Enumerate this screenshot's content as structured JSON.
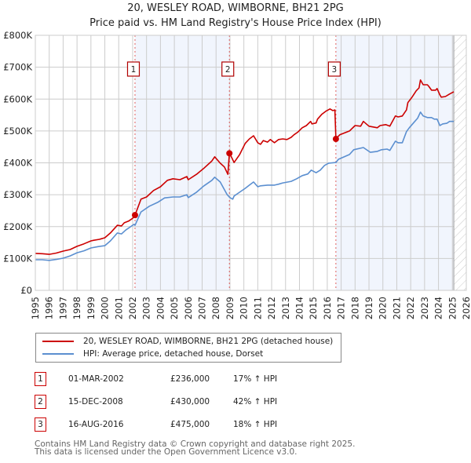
{
  "title_line1": "20, WESLEY ROAD, WIMBORNE, BH21 2PG",
  "title_line2": "Price paid vs. HM Land Registry's House Price Index (HPI)",
  "chart_data": {
    "type": "line",
    "title": "20, WESLEY ROAD, WIMBORNE, BH21 2PG — Price paid vs. HM Land Registry's House Price Index (HPI)",
    "xlabel": "",
    "ylabel": "",
    "xlim": [
      1995,
      2026
    ],
    "ylim": [
      0,
      800000
    ],
    "grid": true,
    "x_ticks": [
      "1995",
      "1996",
      "1997",
      "1998",
      "1999",
      "2000",
      "2001",
      "2002",
      "2003",
      "2004",
      "2005",
      "2006",
      "2007",
      "2008",
      "2009",
      "2010",
      "2011",
      "2012",
      "2013",
      "2014",
      "2015",
      "2016",
      "2017",
      "2018",
      "2019",
      "2020",
      "2021",
      "2022",
      "2023",
      "2024",
      "2025",
      "2026"
    ],
    "y_ticks": [
      {
        "value": 0,
        "label": "£0"
      },
      {
        "value": 100000,
        "label": "£100K"
      },
      {
        "value": 200000,
        "label": "£200K"
      },
      {
        "value": 300000,
        "label": "£300K"
      },
      {
        "value": 400000,
        "label": "£400K"
      },
      {
        "value": 500000,
        "label": "£500K"
      },
      {
        "value": 600000,
        "label": "£600K"
      },
      {
        "value": 700000,
        "label": "£700K"
      },
      {
        "value": 800000,
        "label": "£800K"
      }
    ],
    "legend_position": "below",
    "series": [
      {
        "name": "20, WESLEY ROAD, WIMBORNE, BH21 2PG (detached house)",
        "color": "#cc0000",
        "points": [
          [
            1995.0,
            116000
          ],
          [
            1995.5,
            115000
          ],
          [
            1996.0,
            113000
          ],
          [
            1996.5,
            117000
          ],
          [
            1997.0,
            123000
          ],
          [
            1997.5,
            128000
          ],
          [
            1998.0,
            138000
          ],
          [
            1998.5,
            146000
          ],
          [
            1999.0,
            155000
          ],
          [
            1999.2,
            157000
          ],
          [
            1999.6,
            160000
          ],
          [
            2000.0,
            165000
          ],
          [
            2000.4,
            180000
          ],
          [
            2000.9,
            204000
          ],
          [
            2001.2,
            202000
          ],
          [
            2001.4,
            212000
          ],
          [
            2001.7,
            217000
          ],
          [
            2002.0,
            226000
          ],
          [
            2002.17,
            236000
          ],
          [
            2002.6,
            286000
          ],
          [
            2003.0,
            293000
          ],
          [
            2003.5,
            313000
          ],
          [
            2004.0,
            325000
          ],
          [
            2004.5,
            345000
          ],
          [
            2004.9,
            350000
          ],
          [
            2005.4,
            347000
          ],
          [
            2005.9,
            357000
          ],
          [
            2006.0,
            347000
          ],
          [
            2006.6,
            364000
          ],
          [
            2007.1,
            382000
          ],
          [
            2007.7,
            406000
          ],
          [
            2007.9,
            419000
          ],
          [
            2008.3,
            399000
          ],
          [
            2008.6,
            387000
          ],
          [
            2008.85,
            364000
          ],
          [
            2008.96,
            430000
          ],
          [
            2009.1,
            419000
          ],
          [
            2009.3,
            401000
          ],
          [
            2009.7,
            426000
          ],
          [
            2010.1,
            461000
          ],
          [
            2010.4,
            475000
          ],
          [
            2010.7,
            485000
          ],
          [
            2011.0,
            463000
          ],
          [
            2011.2,
            458000
          ],
          [
            2011.4,
            470000
          ],
          [
            2011.7,
            465000
          ],
          [
            2011.9,
            473000
          ],
          [
            2012.2,
            463000
          ],
          [
            2012.5,
            473000
          ],
          [
            2012.8,
            475000
          ],
          [
            2013.1,
            473000
          ],
          [
            2013.4,
            480000
          ],
          [
            2013.6,
            488000
          ],
          [
            2013.9,
            497000
          ],
          [
            2014.2,
            510000
          ],
          [
            2014.5,
            517000
          ],
          [
            2014.8,
            530000
          ],
          [
            2014.9,
            522000
          ],
          [
            2015.2,
            525000
          ],
          [
            2015.3,
            537000
          ],
          [
            2015.6,
            552000
          ],
          [
            2015.9,
            562000
          ],
          [
            2016.2,
            569000
          ],
          [
            2016.4,
            564000
          ],
          [
            2016.55,
            566000
          ],
          [
            2016.62,
            475000
          ],
          [
            2016.9,
            488000
          ],
          [
            2017.6,
            500000
          ],
          [
            2018.0,
            517000
          ],
          [
            2018.4,
            515000
          ],
          [
            2018.6,
            530000
          ],
          [
            2019.0,
            515000
          ],
          [
            2019.6,
            510000
          ],
          [
            2019.8,
            517000
          ],
          [
            2020.2,
            520000
          ],
          [
            2020.5,
            515000
          ],
          [
            2020.9,
            547000
          ],
          [
            2021.1,
            544000
          ],
          [
            2021.4,
            547000
          ],
          [
            2021.7,
            566000
          ],
          [
            2021.8,
            589000
          ],
          [
            2022.1,
            606000
          ],
          [
            2022.4,
            626000
          ],
          [
            2022.6,
            635000
          ],
          [
            2022.7,
            660000
          ],
          [
            2022.9,
            645000
          ],
          [
            2023.2,
            645000
          ],
          [
            2023.3,
            640000
          ],
          [
            2023.5,
            628000
          ],
          [
            2023.8,
            628000
          ],
          [
            2023.9,
            633000
          ],
          [
            2024.1,
            613000
          ],
          [
            2024.2,
            606000
          ],
          [
            2024.5,
            608000
          ],
          [
            2024.8,
            616000
          ],
          [
            2025.1,
            623000
          ]
        ]
      },
      {
        "name": "HPI: Average price, detached house, Dorset",
        "color": "#5b8fd0",
        "points": [
          [
            1995.0,
            96000
          ],
          [
            1995.5,
            96000
          ],
          [
            1996.0,
            94000
          ],
          [
            1996.5,
            97000
          ],
          [
            1997.0,
            101000
          ],
          [
            1997.5,
            108000
          ],
          [
            1998.0,
            118000
          ],
          [
            1998.5,
            124000
          ],
          [
            1999.0,
            133000
          ],
          [
            1999.5,
            137000
          ],
          [
            2000.0,
            140000
          ],
          [
            2000.4,
            155000
          ],
          [
            2000.9,
            180000
          ],
          [
            2001.2,
            177000
          ],
          [
            2001.5,
            189000
          ],
          [
            2002.1,
            207000
          ],
          [
            2002.17,
            204000
          ],
          [
            2002.6,
            246000
          ],
          [
            2003.2,
            264000
          ],
          [
            2003.8,
            276000
          ],
          [
            2004.3,
            290000
          ],
          [
            2004.9,
            293000
          ],
          [
            2005.4,
            293000
          ],
          [
            2005.9,
            300000
          ],
          [
            2006.0,
            291000
          ],
          [
            2006.6,
            308000
          ],
          [
            2007.1,
            327000
          ],
          [
            2007.7,
            345000
          ],
          [
            2007.9,
            355000
          ],
          [
            2008.3,
            340000
          ],
          [
            2008.8,
            300000
          ],
          [
            2009.0,
            291000
          ],
          [
            2009.2,
            286000
          ],
          [
            2009.3,
            296000
          ],
          [
            2009.7,
            308000
          ],
          [
            2010.1,
            320000
          ],
          [
            2010.4,
            330000
          ],
          [
            2010.7,
            340000
          ],
          [
            2011.0,
            325000
          ],
          [
            2011.2,
            328000
          ],
          [
            2011.7,
            330000
          ],
          [
            2012.0,
            330000
          ],
          [
            2012.2,
            330000
          ],
          [
            2012.5,
            333000
          ],
          [
            2012.8,
            337000
          ],
          [
            2013.4,
            342000
          ],
          [
            2013.8,
            350000
          ],
          [
            2014.2,
            360000
          ],
          [
            2014.6,
            365000
          ],
          [
            2014.85,
            377000
          ],
          [
            2015.2,
            369000
          ],
          [
            2015.5,
            377000
          ],
          [
            2015.8,
            392000
          ],
          [
            2016.1,
            399000
          ],
          [
            2016.62,
            401000
          ],
          [
            2016.8,
            411000
          ],
          [
            2017.6,
            426000
          ],
          [
            2017.9,
            441000
          ],
          [
            2018.6,
            448000
          ],
          [
            2019.1,
            433000
          ],
          [
            2019.6,
            436000
          ],
          [
            2019.9,
            441000
          ],
          [
            2020.3,
            443000
          ],
          [
            2020.5,
            439000
          ],
          [
            2020.9,
            468000
          ],
          [
            2021.1,
            463000
          ],
          [
            2021.4,
            463000
          ],
          [
            2021.7,
            498000
          ],
          [
            2021.9,
            510000
          ],
          [
            2022.2,
            525000
          ],
          [
            2022.5,
            540000
          ],
          [
            2022.7,
            559000
          ],
          [
            2022.9,
            547000
          ],
          [
            2023.2,
            542000
          ],
          [
            2023.5,
            542000
          ],
          [
            2023.7,
            537000
          ],
          [
            2023.9,
            537000
          ],
          [
            2024.1,
            517000
          ],
          [
            2024.3,
            522000
          ],
          [
            2024.6,
            524000
          ],
          [
            2024.8,
            530000
          ],
          [
            2025.1,
            530000
          ]
        ]
      }
    ],
    "sale_markers": [
      {
        "label": "1",
        "year": 2002.17,
        "value": 236000
      },
      {
        "label": "2",
        "year": 2008.96,
        "value": 430000
      },
      {
        "label": "3",
        "year": 2016.62,
        "value": 475000
      }
    ],
    "shaded_ranges": [
      {
        "from": 2002.17,
        "to": 2008.96
      },
      {
        "from": 2016.62,
        "to": 2025.1
      }
    ],
    "forecast_hatch_from": 2025.1
  },
  "legend": [
    {
      "label": "20, WESLEY ROAD, WIMBORNE, BH21 2PG (detached house)",
      "color": "#cc0000"
    },
    {
      "label": "HPI: Average price, detached house, Dorset",
      "color": "#5b8fd0"
    }
  ],
  "sales": [
    {
      "num": "1",
      "date": "01-MAR-2002",
      "price": "£236,000",
      "hpi": "17% ↑ HPI"
    },
    {
      "num": "2",
      "date": "15-DEC-2008",
      "price": "£430,000",
      "hpi": "42% ↑ HPI"
    },
    {
      "num": "3",
      "date": "16-AUG-2016",
      "price": "£475,000",
      "hpi": "18% ↑ HPI"
    }
  ],
  "footer_line1": "Contains HM Land Registry data © Crown copyright and database right 2025.",
  "footer_line2": "This data is licensed under the Open Government Licence v3.0."
}
